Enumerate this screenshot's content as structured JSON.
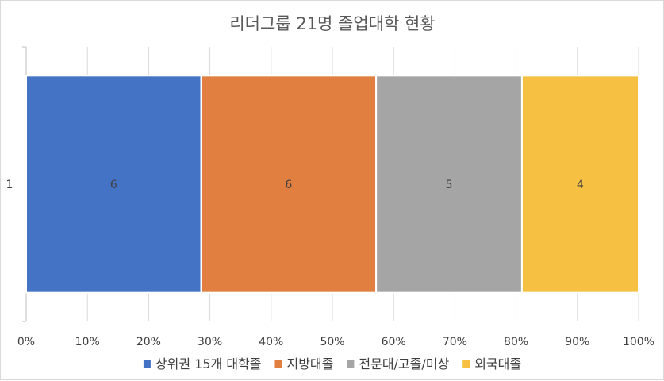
{
  "chart_data": {
    "type": "bar",
    "orientation": "horizontal",
    "stacking": "percent",
    "title": "리더그룹 21명 졸업대학 현황",
    "categories": [
      "1"
    ],
    "series": [
      {
        "name": "상위권 15개 대학졸",
        "values": [
          6
        ],
        "color": "#4472C4"
      },
      {
        "name": "지방대졸",
        "values": [
          6
        ],
        "color": "#E07F3F"
      },
      {
        "name": "전문대/고졸/미상",
        "values": [
          5
        ],
        "color": "#A5A5A5"
      },
      {
        "name": "외국대졸",
        "values": [
          4
        ],
        "color": "#F6C143"
      }
    ],
    "xlim": [
      0,
      100
    ],
    "x_ticks": [
      "0%",
      "10%",
      "20%",
      "30%",
      "40%",
      "50%",
      "60%",
      "70%",
      "80%",
      "90%",
      "100%"
    ],
    "grid": true,
    "legend": "bottom"
  }
}
